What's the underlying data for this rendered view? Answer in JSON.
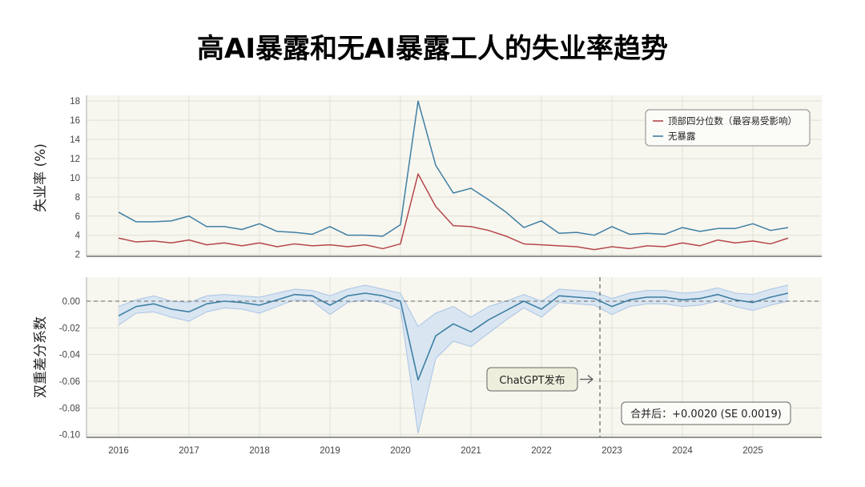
{
  "title": "高AI暴露和无AI暴露工人的失业率趋势",
  "chart_data": [
    {
      "type": "line",
      "ylabel": "失业率 (%)",
      "ylim": [
        1.8,
        18.6
      ],
      "yticks": [
        "2",
        "4",
        "6",
        "8",
        "10",
        "12",
        "14",
        "16",
        "18"
      ],
      "grid": true,
      "legend": {
        "placement": "top-right"
      },
      "x": [
        2016.0,
        2016.25,
        2016.5,
        2016.75,
        2017.0,
        2017.25,
        2017.5,
        2017.75,
        2018.0,
        2018.25,
        2018.5,
        2018.75,
        2019.0,
        2019.25,
        2019.5,
        2019.75,
        2020.0,
        2020.25,
        2020.5,
        2020.75,
        2021.0,
        2021.25,
        2021.5,
        2021.75,
        2022.0,
        2022.25,
        2022.5,
        2022.75,
        2023.0,
        2023.25,
        2023.5,
        2023.75,
        2024.0,
        2024.25,
        2024.5,
        2024.75,
        2025.0,
        2025.25,
        2025.5
      ],
      "series": [
        {
          "name": "顶部四分位数（最容易受影响）",
          "color": "#b5474b",
          "values": [
            3.7,
            3.3,
            3.4,
            3.2,
            3.5,
            3.0,
            3.2,
            2.9,
            3.2,
            2.8,
            3.1,
            2.9,
            3.0,
            2.8,
            3.0,
            2.6,
            3.1,
            10.4,
            7.0,
            5.0,
            4.9,
            4.5,
            3.9,
            3.1,
            3.0,
            2.9,
            2.8,
            2.5,
            2.8,
            2.6,
            2.9,
            2.8,
            3.2,
            2.9,
            3.5,
            3.2,
            3.4,
            3.1,
            3.7
          ]
        },
        {
          "name": "无暴露",
          "color": "#3f7fa3",
          "values": [
            6.4,
            5.4,
            5.4,
            5.5,
            6.0,
            4.9,
            4.9,
            4.6,
            5.2,
            4.4,
            4.3,
            4.1,
            4.9,
            4.0,
            4.0,
            3.9,
            5.1,
            18.0,
            11.3,
            8.4,
            8.9,
            7.7,
            6.4,
            4.8,
            5.5,
            4.2,
            4.3,
            4.0,
            4.9,
            4.1,
            4.2,
            4.1,
            4.8,
            4.4,
            4.7,
            4.7,
            5.2,
            4.5,
            4.8
          ]
        }
      ]
    },
    {
      "type": "line",
      "ylabel": "双重差分系数",
      "ylim": [
        -0.102,
        0.018
      ],
      "yticks": [
        "0.00",
        "-0.02",
        "-0.04",
        "-0.06",
        "-0.08",
        "-0.10"
      ],
      "grid": true,
      "reference_line_y": 0.0,
      "event": {
        "x": 2022.83,
        "label": "ChatGPT发布"
      },
      "annotation": "合并后：+0.0020 (SE 0.0019)",
      "xticks": [
        "2016",
        "2017",
        "2018",
        "2019",
        "2020",
        "2021",
        "2022",
        "2023",
        "2024",
        "2025"
      ],
      "color": "#3f7fa3",
      "band_color": "#cfe0f3",
      "x": [
        2016.0,
        2016.25,
        2016.5,
        2016.75,
        2017.0,
        2017.25,
        2017.5,
        2017.75,
        2018.0,
        2018.25,
        2018.5,
        2018.75,
        2019.0,
        2019.25,
        2019.5,
        2019.75,
        2020.0,
        2020.25,
        2020.5,
        2020.75,
        2021.0,
        2021.25,
        2021.5,
        2021.75,
        2022.0,
        2022.25,
        2022.5,
        2022.75,
        2023.0,
        2023.25,
        2023.5,
        2023.75,
        2024.0,
        2024.25,
        2024.5,
        2024.75,
        2025.0,
        2025.25,
        2025.5
      ],
      "values": [
        -0.011,
        -0.004,
        -0.002,
        -0.006,
        -0.008,
        -0.002,
        0.0,
        -0.001,
        -0.003,
        0.001,
        0.005,
        0.004,
        -0.003,
        0.004,
        0.006,
        0.004,
        0.0,
        -0.059,
        -0.026,
        -0.017,
        -0.023,
        -0.014,
        -0.007,
        0.0,
        -0.006,
        0.004,
        0.003,
        0.002,
        -0.004,
        0.001,
        0.003,
        0.003,
        0.001,
        0.002,
        0.005,
        0.001,
        -0.001,
        0.003,
        0.006
      ],
      "ci_lower": [
        -0.018,
        -0.009,
        -0.008,
        -0.012,
        -0.015,
        -0.008,
        -0.005,
        -0.006,
        -0.009,
        -0.004,
        0.001,
        0.0,
        -0.01,
        -0.001,
        0.001,
        -0.001,
        -0.006,
        -0.099,
        -0.043,
        -0.03,
        -0.034,
        -0.024,
        -0.014,
        -0.005,
        -0.012,
        -0.001,
        -0.002,
        -0.003,
        -0.01,
        -0.004,
        -0.002,
        -0.002,
        -0.004,
        -0.003,
        0.0,
        -0.004,
        -0.007,
        -0.003,
        0.0
      ],
      "ci_upper": [
        -0.004,
        0.001,
        0.004,
        0.0,
        -0.001,
        0.004,
        0.005,
        0.004,
        0.003,
        0.006,
        0.009,
        0.008,
        0.004,
        0.009,
        0.012,
        0.009,
        0.006,
        -0.019,
        -0.009,
        -0.004,
        -0.012,
        -0.004,
        0.0,
        0.005,
        0.0,
        0.009,
        0.008,
        0.007,
        0.002,
        0.006,
        0.008,
        0.008,
        0.006,
        0.007,
        0.01,
        0.006,
        0.005,
        0.009,
        0.012
      ]
    }
  ]
}
